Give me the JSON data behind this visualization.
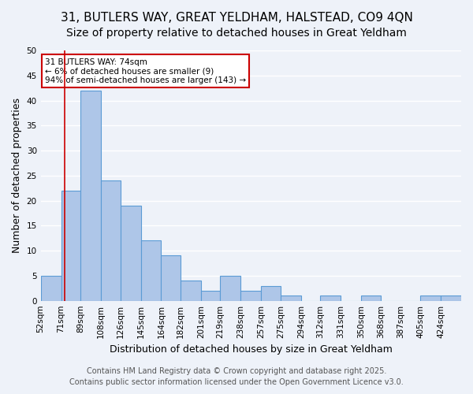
{
  "title_line1": "31, BUTLERS WAY, GREAT YELDHAM, HALSTEAD, CO9 4QN",
  "title_line2": "Size of property relative to detached houses in Great Yeldham",
  "xlabel": "Distribution of detached houses by size in Great Yeldham",
  "ylabel": "Number of detached properties",
  "annotation_title": "31 BUTLERS WAY: 74sqm",
  "annotation_line2": "← 6% of detached houses are smaller (9)",
  "annotation_line3": "94% of semi-detached houses are larger (143) →",
  "bar_edges": [
    52,
    71,
    89,
    108,
    126,
    145,
    164,
    182,
    201,
    219,
    238,
    257,
    275,
    294,
    312,
    331,
    350,
    368,
    387,
    405,
    424,
    443
  ],
  "bar_heights": [
    5,
    22,
    42,
    24,
    19,
    12,
    9,
    4,
    2,
    5,
    2,
    3,
    1,
    0,
    1,
    0,
    1,
    0,
    0,
    1,
    1
  ],
  "tick_labels": [
    "52sqm",
    "71sqm",
    "89sqm",
    "108sqm",
    "126sqm",
    "145sqm",
    "164sqm",
    "182sqm",
    "201sqm",
    "219sqm",
    "238sqm",
    "257sqm",
    "275sqm",
    "294sqm",
    "312sqm",
    "331sqm",
    "350sqm",
    "368sqm",
    "387sqm",
    "405sqm",
    "424sqm"
  ],
  "bar_color": "#aec6e8",
  "bar_edge_color": "#5b9bd5",
  "red_line_x": 74,
  "ylim": [
    0,
    50
  ],
  "yticks": [
    0,
    5,
    10,
    15,
    20,
    25,
    30,
    35,
    40,
    45,
    50
  ],
  "background_color": "#eef2f9",
  "grid_color": "#ffffff",
  "footer_line1": "Contains HM Land Registry data © Crown copyright and database right 2025.",
  "footer_line2": "Contains public sector information licensed under the Open Government Licence v3.0.",
  "annotation_box_color": "#ffffff",
  "annotation_box_edge_color": "#cc0000",
  "title_fontsize": 11,
  "subtitle_fontsize": 10,
  "axis_label_fontsize": 9,
  "tick_fontsize": 7.5,
  "footer_fontsize": 7
}
